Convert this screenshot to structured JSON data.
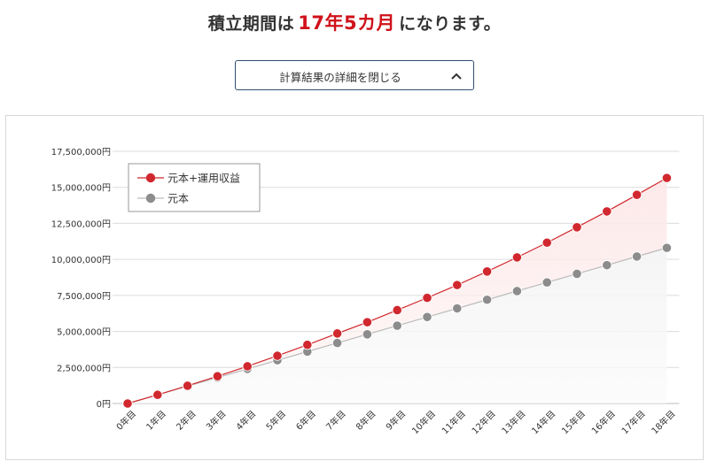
{
  "headline": {
    "prefix": "積立期間は",
    "value": "17年5カ月",
    "suffix": "になります。"
  },
  "toggle": {
    "label": "計算結果の詳細を閉じる",
    "icon": "chevron-up-icon"
  },
  "colors": {
    "accent": "#d0121b",
    "series_total": "#d0282e",
    "series_principal": "#8c8c8c",
    "button_border": "#2f4f6f"
  },
  "chart_data": {
    "type": "line",
    "categories": [
      "0年目",
      "1年目",
      "2年目",
      "3年目",
      "4年目",
      "5年目",
      "6年目",
      "7年目",
      "8年目",
      "9年目",
      "10年目",
      "11年目",
      "12年目",
      "13年目",
      "14年目",
      "15年目",
      "16年目",
      "17年目",
      "18年目"
    ],
    "series": [
      {
        "name": "元本+運用収益",
        "color": "#d0282e",
        "values": [
          0,
          600000,
          1230000,
          1890000,
          2580000,
          3310000,
          4070000,
          4860000,
          5640000,
          6480000,
          7330000,
          8220000,
          9160000,
          10140000,
          11160000,
          12230000,
          13330000,
          14480000,
          15650000
        ]
      },
      {
        "name": "元本",
        "color": "#8c8c8c",
        "values": [
          0,
          600000,
          1200000,
          1800000,
          2400000,
          3000000,
          3600000,
          4200000,
          4800000,
          5400000,
          6000000,
          6600000,
          7200000,
          7800000,
          8400000,
          9000000,
          9600000,
          10200000,
          10800000
        ]
      }
    ],
    "yticks": [
      "0円",
      "2,500,000円",
      "5,000,000円",
      "7,500,000円",
      "10,000,000円",
      "12,500,000円",
      "15,000,000円",
      "17,500,000円"
    ],
    "ylim": [
      0,
      17500000
    ],
    "grid": true,
    "legend": "top-left",
    "area_fill": true
  }
}
